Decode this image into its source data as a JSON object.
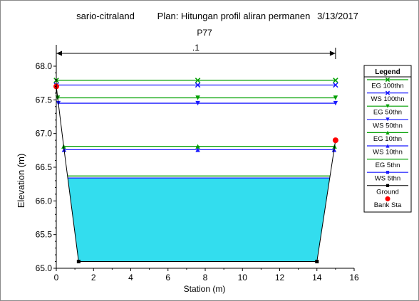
{
  "header": {
    "project": "sario-citraland",
    "plan": "Plan: Hitungan profil aliran permanen",
    "date": "3/13/2017",
    "section": "P77"
  },
  "chart_data": {
    "type": "line",
    "xlabel": "Station (m)",
    "ylabel": "Elevation (m)",
    "xlim": [
      0,
      16
    ],
    "ylim": [
      65.0,
      68.0
    ],
    "x_ticks": [
      "0",
      "2",
      "4",
      "6",
      "8",
      "10",
      "12",
      "14",
      "16"
    ],
    "y_ticks": [
      "65.0",
      "65.5",
      "66.0",
      "66.5",
      "67.0",
      "67.5",
      "68.0"
    ],
    "reach_label": ".1",
    "reach_extent": [
      0,
      15
    ],
    "ground": {
      "name": "Ground",
      "x": [
        0,
        0.4,
        1.2,
        14.0,
        15.0
      ],
      "y": [
        67.7,
        66.8,
        65.1,
        65.1,
        66.9
      ]
    },
    "bank_sta": {
      "name": "Bank Sta",
      "points": [
        {
          "x": 0.0,
          "y": 67.7
        },
        {
          "x": 15.0,
          "y": 66.9
        }
      ]
    },
    "water_surface_fill": {
      "name": "WS 5thn",
      "elevation": 66.34,
      "color": "#33ddee"
    },
    "profiles": [
      {
        "name": "EG 100thn",
        "elevation": 67.79,
        "color": "#00a000",
        "marker": "x"
      },
      {
        "name": "WS 100thn",
        "elevation": 67.72,
        "color": "#1a1aff",
        "marker": "x"
      },
      {
        "name": "EG 50thn",
        "elevation": 67.53,
        "color": "#00a000",
        "marker": "tri-down"
      },
      {
        "name": "WS 50thn",
        "elevation": 67.45,
        "color": "#1a1aff",
        "marker": "tri-down"
      },
      {
        "name": "EG 10thn",
        "elevation": 66.81,
        "color": "#00a000",
        "marker": "tri-up"
      },
      {
        "name": "WS 10thn",
        "elevation": 66.76,
        "color": "#1a1aff",
        "marker": "tri-up"
      },
      {
        "name": "EG 5thn",
        "elevation": 66.37,
        "color": "#00a000",
        "marker": "none"
      },
      {
        "name": "WS 5thn",
        "elevation": 66.34,
        "color": "#1a1aff",
        "marker": "none"
      }
    ],
    "marker_stations": [
      0,
      7.6,
      15.0
    ],
    "legend": {
      "title": "Legend",
      "placement": "right",
      "entries": [
        {
          "label": "EG 100thn",
          "color": "#00a000",
          "marker": "x"
        },
        {
          "label": "WS 100thn",
          "color": "#1a1aff",
          "marker": "x"
        },
        {
          "label": "EG 50thn",
          "color": "#00a000",
          "marker": "tri-down"
        },
        {
          "label": "WS 50thn",
          "color": "#1a1aff",
          "marker": "tri-down"
        },
        {
          "label": "EG 10thn",
          "color": "#00a000",
          "marker": "tri-up"
        },
        {
          "label": "WS 10thn",
          "color": "#1a1aff",
          "marker": "tri-up"
        },
        {
          "label": "EG 5thn",
          "color": "#00a000",
          "marker": "none"
        },
        {
          "label": "WS 5thn",
          "color": "#1a1aff",
          "marker": "square"
        },
        {
          "label": "Ground",
          "color": "#000000",
          "marker": "square"
        },
        {
          "label": "Bank Sta",
          "color": "#ff0000",
          "marker": "circle"
        }
      ]
    }
  }
}
